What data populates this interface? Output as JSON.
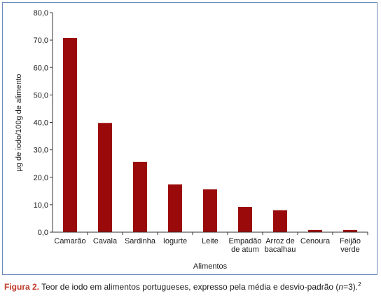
{
  "chart_data": {
    "type": "bar",
    "categories": [
      "Camarão",
      "Cavala",
      "Sardinha",
      "Iogurte",
      "Leite",
      "Empadão de atum",
      "Arroz de bacalhau",
      "Cenoura",
      "Feijão verde"
    ],
    "category_lines": [
      [
        "Camarão"
      ],
      [
        "Cavala"
      ],
      [
        "Sardinha"
      ],
      [
        "Iogurte"
      ],
      [
        "Leite"
      ],
      [
        "Empadão",
        "de atum"
      ],
      [
        "Arroz de",
        "bacalhau"
      ],
      [
        "Cenoura"
      ],
      [
        "Feijão",
        "verde"
      ]
    ],
    "values": [
      70.8,
      39.8,
      25.6,
      17.4,
      15.6,
      9.2,
      8.0,
      0.8,
      0.8
    ],
    "xlabel": "Alimentos",
    "ylabel": "µg de iodo/100g de alimento",
    "ylim": [
      0,
      80
    ],
    "yticks": [
      "0,0",
      "10,0",
      "20,0",
      "30,0",
      "40,0",
      "50,0",
      "60,0",
      "70,0",
      "80,0"
    ],
    "grid": false,
    "bar_color": "#9b0a0a"
  },
  "caption": {
    "label": "Figura 2.",
    "text": " Teor de iodo em alimentos portugueses, expresso pela média e desvio-padrão (",
    "n_italic": "n",
    "text_end": "=3).",
    "ref": "2"
  },
  "colors": {
    "frame_border": "#6b8bb8",
    "caption_label": "#c0392b"
  }
}
